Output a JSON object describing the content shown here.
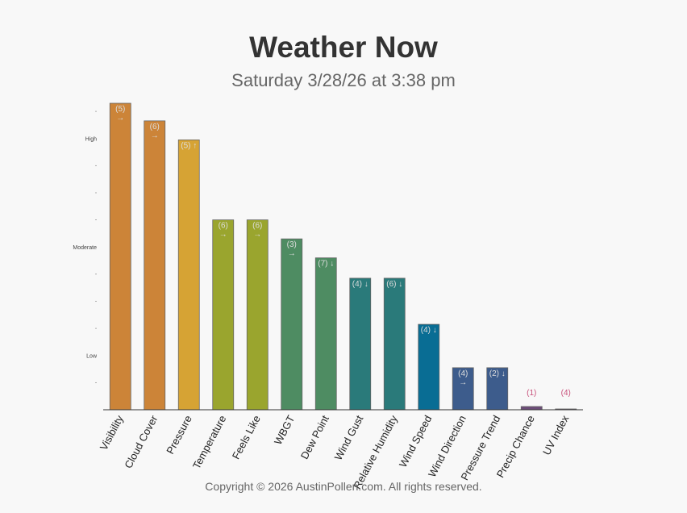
{
  "title": "Weather Now",
  "subtitle": "Saturday 3/28/26 at 3:38 pm",
  "footer": "Copyright © 2026 AustinPollen.com.  All rights reserved.",
  "chart_data": {
    "type": "bar",
    "title": "Weather Now",
    "subtitle": "Saturday 3/28/26 at 3:38 pm",
    "xlabel": "",
    "ylabel": "",
    "ylim": [
      0,
      11.3
    ],
    "grid": false,
    "legend": "none",
    "y_tick_labels": [
      {
        "value": 2,
        "label": "Low"
      },
      {
        "value": 6,
        "label": "Moderate"
      },
      {
        "value": 10,
        "label": "High"
      }
    ],
    "y_minor_ticks": [
      1,
      3,
      4,
      5,
      7,
      8,
      9,
      11
    ],
    "categories": [
      "Visibility",
      "Cloud Cover",
      "Pressure",
      "Temperature",
      "Feels Like",
      "WBGT",
      "Dew Point",
      "Wind Gust",
      "Relative Humidity",
      "Wind Speed",
      "Wind Direction",
      "Pressure Trend",
      "Precip Chance",
      "UV Index"
    ],
    "values": [
      11.3,
      10.65,
      9.95,
      7.0,
      7.0,
      6.3,
      5.6,
      4.85,
      4.85,
      3.15,
      1.55,
      1.55,
      0.12,
      0.03
    ],
    "labels": [
      "(5)\n→",
      "(6)\n→",
      "(5) ↑",
      "(6)\n→",
      "(6)\n→",
      "(3)\n→",
      "(7) ↓",
      "(4) ↓",
      "(6) ↓",
      "(4) ↓",
      "(4)\n→",
      "(2) ↓",
      "(1)",
      "(4)"
    ],
    "colors": [
      "#cc8438",
      "#cc8438",
      "#d6a334",
      "#9aa52e",
      "#9aa52e",
      "#4e8c62",
      "#4e8c62",
      "#2a7a7a",
      "#2a7a7a",
      "#096d94",
      "#3d5c8c",
      "#3d5c8c",
      "#6c4c78",
      "#6c4c78"
    ]
  }
}
